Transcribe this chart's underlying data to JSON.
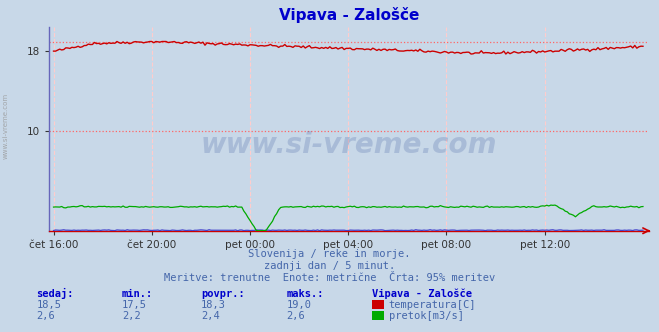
{
  "title": "Vipava - Zalošče",
  "title_color": "#0000cc",
  "bg_color": "#c8d8e8",
  "plot_bg_color": "#c8d8e8",
  "x_tick_labels": [
    "čet 16:00",
    "čet 20:00",
    "pet 00:00",
    "pet 04:00",
    "pet 08:00",
    "pet 12:00"
  ],
  "x_tick_positions": [
    0,
    48,
    96,
    144,
    192,
    240
  ],
  "n_points": 289,
  "temp_color": "#cc0000",
  "pretok_color": "#00aa00",
  "visina_color": "#4444cc",
  "grid_v_color": "#ffcccc",
  "grid_h_color": "#ffcccc",
  "dashed_line_color": "#ff6666",
  "ymin": 0,
  "ymax": 20.5,
  "ytick_positions": [
    10,
    18
  ],
  "ytick_labels": [
    "10",
    "18"
  ],
  "max_ref_line": 19.0,
  "subtitle1": "Slovenija / reke in morje.",
  "subtitle2": "zadnji dan / 5 minut.",
  "subtitle3": "Meritve: trenutne  Enote: metrične  Črta: 95% meritev",
  "subtitle_color": "#4466aa",
  "watermark": "www.si-vreme.com",
  "watermark_color": "#1a3a8a",
  "legend_title": "Vipava - Zalošče",
  "legend_color": "#0000cc",
  "label_color": "#4466aa",
  "header_color": "#0000cc",
  "left_text": "www.si-vreme.com",
  "sedaj_temp": "18,5",
  "min_temp": "17,5",
  "povpr_temp": "18,3",
  "maks_temp": "19,0",
  "sedaj_pretok": "2,6",
  "min_pretok": "2,2",
  "povpr_pretok": "2,4",
  "maks_pretok": "2,6"
}
